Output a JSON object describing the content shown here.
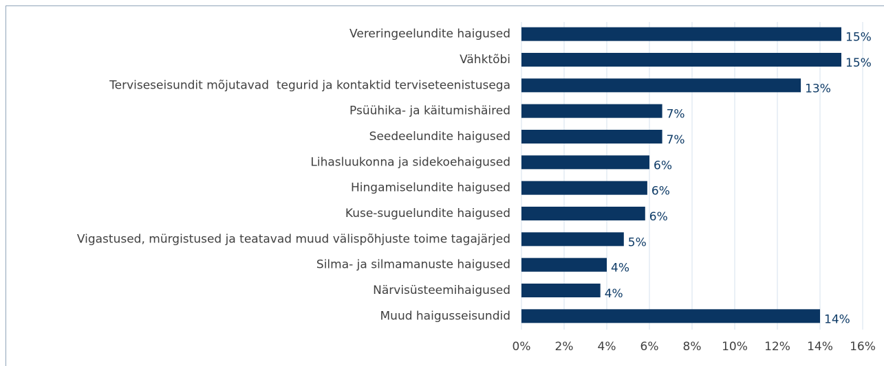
{
  "chart_data": {
    "type": "bar",
    "orientation": "horizontal",
    "categories": [
      "Vereringeelundite haigused",
      "Vähktõbi",
      "Terviseseisundit mõjutavad  tegurid ja kontaktid terviseteenistusega",
      "Psüühika- ja käitumishäired",
      "Seedeelundite haigused",
      "Lihasluukonna ja sidekoehaigused",
      "Hingamiselundite haigused",
      "Kuse-suguelundite haigused",
      "Vigastused, mürgistused ja teatavad muud välispõhjuste toime tagajärjed",
      "Silma- ja silmamanuste haigused",
      "Närvisüsteemihaigused",
      "Muud haigusseisundid"
    ],
    "values": [
      15.0,
      15.0,
      13.1,
      6.6,
      6.6,
      6.0,
      5.9,
      5.8,
      4.8,
      4.0,
      3.7,
      14.0
    ],
    "value_labels": [
      "15%",
      "15%",
      "13%",
      "7%",
      "7%",
      "6%",
      "6%",
      "6%",
      "5%",
      "4%",
      "4%",
      "14%"
    ],
    "color": "#0a3562",
    "xlim": [
      0,
      16
    ],
    "xticks": [
      {
        "value": 0,
        "label": "0%"
      },
      {
        "value": 2,
        "label": "2%"
      },
      {
        "value": 4,
        "label": "4%"
      },
      {
        "value": 6,
        "label": "6%"
      },
      {
        "value": 8,
        "label": "8%"
      },
      {
        "value": 10,
        "label": "10%"
      },
      {
        "value": 12,
        "label": "12%"
      },
      {
        "value": 14,
        "label": "14%"
      },
      {
        "value": 16,
        "label": "16%"
      }
    ],
    "grid": true
  }
}
